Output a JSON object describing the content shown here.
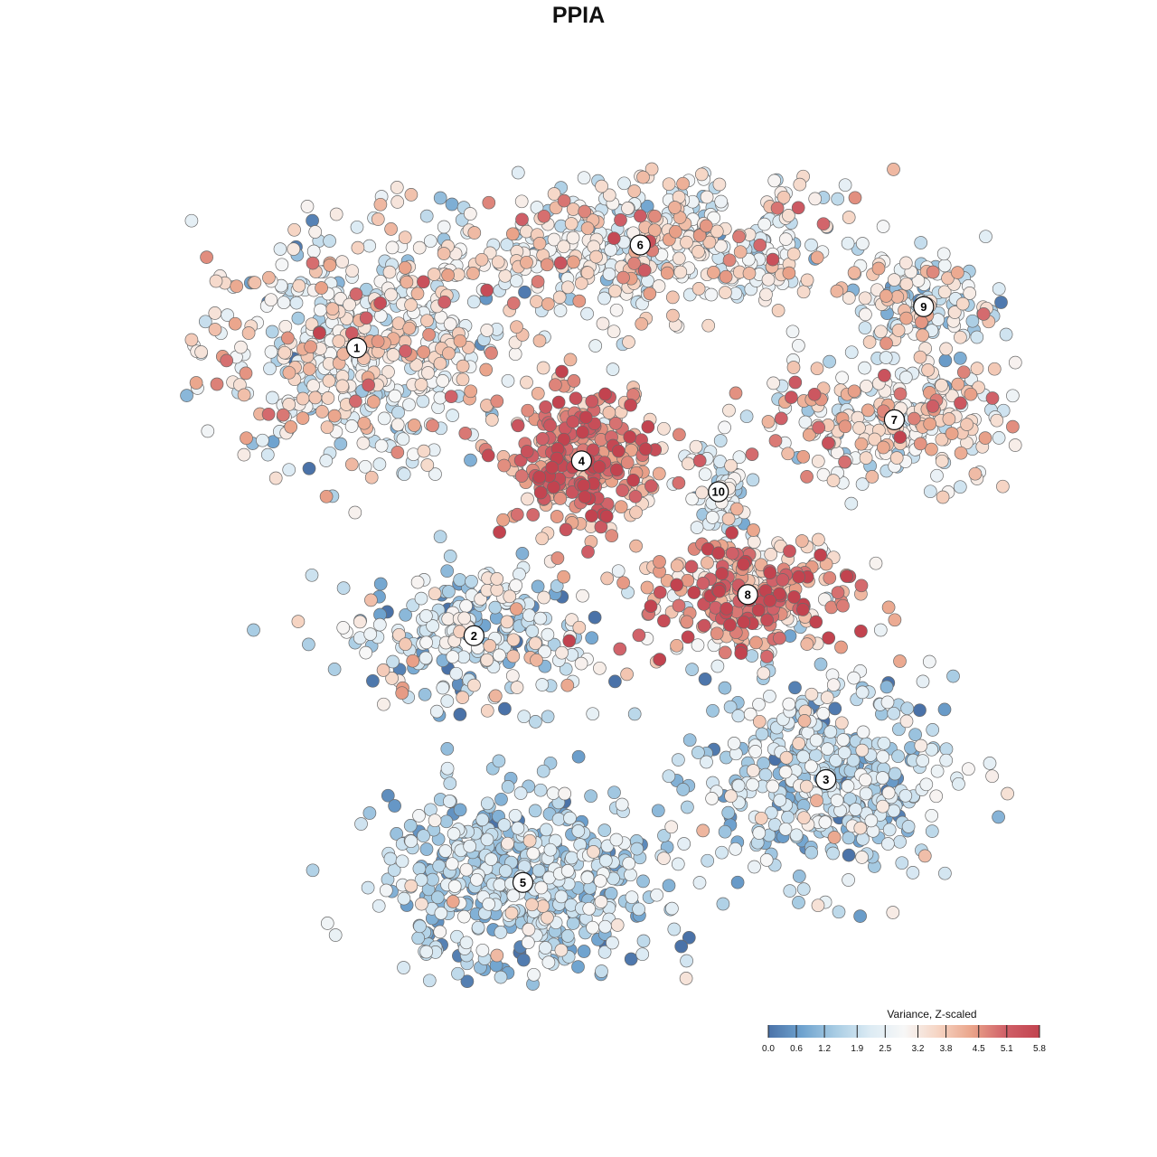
{
  "chart_data": {
    "type": "scatter",
    "title": "PPIA",
    "legend": {
      "title": "Variance, Z-scaled",
      "ticks": [
        "0.0",
        "0.6",
        "1.2",
        "1.9",
        "2.5",
        "3.2",
        "3.8",
        "4.5",
        "5.1",
        "5.8"
      ],
      "min": 0.0,
      "max": 5.8,
      "placement": "bottom-right"
    },
    "colorscale": [
      "#4a72a8",
      "#6fa3cf",
      "#a9cde4",
      "#dcebf4",
      "#f7f7f7",
      "#f6d5c4",
      "#eaa48a",
      "#d06068",
      "#c2434f"
    ],
    "point_color": {
      "low": "#4a72a8",
      "high": "#c2434f"
    },
    "axes": {
      "x_visible": false,
      "y_visible": false,
      "grid": false
    },
    "clusters": [
      {
        "id": "1",
        "x": -20.0,
        "y": 24.0,
        "mean_value": 2.8,
        "spread": 2.2
      },
      {
        "id": "2",
        "x": -8.0,
        "y": -4.0,
        "mean_value": 2.0,
        "spread": 2.4
      },
      {
        "id": "3",
        "x": 28.0,
        "y": -18.0,
        "mean_value": 1.7,
        "spread": 2.0
      },
      {
        "id": "4",
        "x": 3.0,
        "y": 13.0,
        "mean_value": 4.5,
        "spread": 2.2
      },
      {
        "id": "5",
        "x": -3.0,
        "y": -28.0,
        "mean_value": 1.6,
        "spread": 1.8
      },
      {
        "id": "6",
        "x": 9.0,
        "y": 34.0,
        "mean_value": 2.9,
        "spread": 2.2
      },
      {
        "id": "7",
        "x": 35.0,
        "y": 17.0,
        "mean_value": 3.0,
        "spread": 2.4
      },
      {
        "id": "8",
        "x": 20.0,
        "y": 0.0,
        "mean_value": 4.4,
        "spread": 2.4
      },
      {
        "id": "9",
        "x": 38.0,
        "y": 28.0,
        "mean_value": 2.4,
        "spread": 2.0
      },
      {
        "id": "10",
        "x": 17.0,
        "y": 10.0,
        "mean_value": 2.2,
        "spread": 2.0
      }
    ]
  }
}
